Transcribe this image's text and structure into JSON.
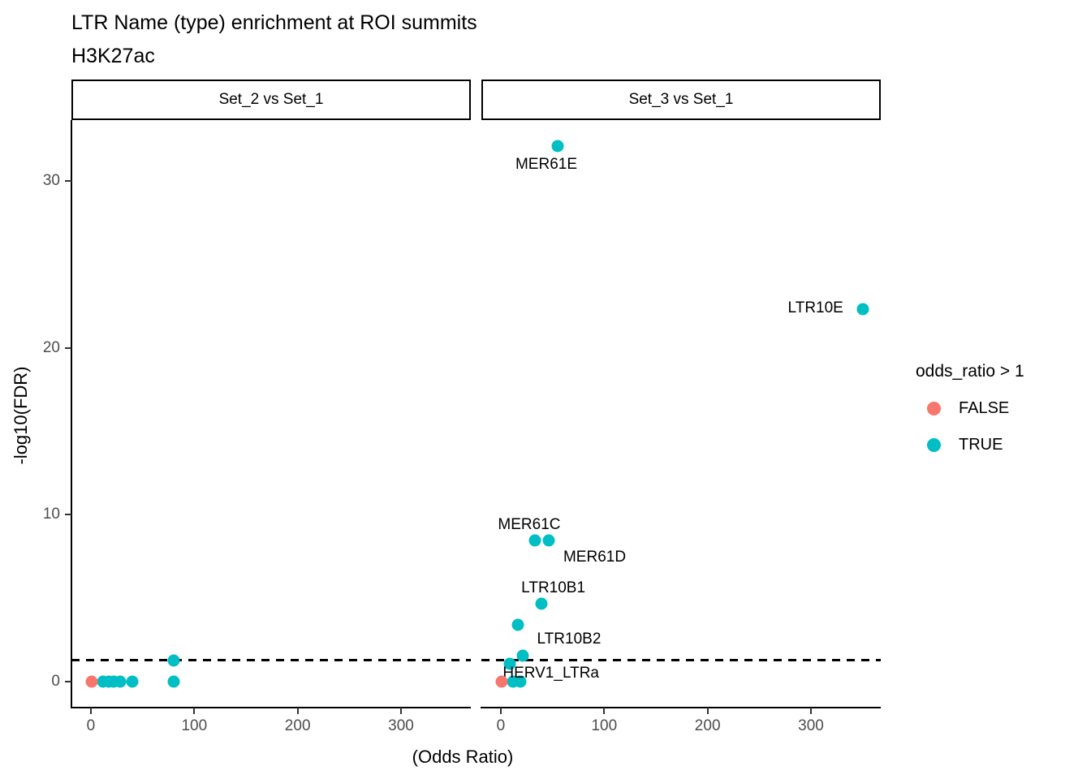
{
  "title": "LTR Name (type) enrichment at ROI summits",
  "subtitle": "H3K27ac",
  "chart_data": {
    "type": "scatter",
    "title": "LTR Name (type) enrichment at ROI summits",
    "subtitle": "H3K27ac",
    "xlabel": "(Odds Ratio)",
    "ylabel": "-log10(FDR)",
    "x_ticks": [
      0,
      100,
      200,
      300
    ],
    "y_ticks": [
      0,
      10,
      20,
      30
    ],
    "xlim": [
      -18.8,
      367.5
    ],
    "ylim": [
      -1.56,
      33.65
    ],
    "grid": false,
    "threshold_line": {
      "y": 1.3,
      "style": "dashed",
      "color": "#000000"
    },
    "legend": {
      "title": "odds_ratio > 1",
      "position": "right",
      "entries": [
        {
          "label": "FALSE",
          "color": "#F8766D"
        },
        {
          "label": "TRUE",
          "color": "#00BFC4"
        }
      ]
    },
    "facets": [
      {
        "label": "Set_2 vs Set_1",
        "points": [
          {
            "x": 12,
            "y": 0,
            "group": "TRUE"
          },
          {
            "x": 17,
            "y": 0,
            "group": "TRUE"
          },
          {
            "x": 22,
            "y": 0,
            "group": "TRUE"
          },
          {
            "x": 28,
            "y": 0,
            "group": "TRUE"
          },
          {
            "x": 40,
            "y": 0,
            "group": "TRUE"
          },
          {
            "x": 80,
            "y": 1.25,
            "group": "TRUE"
          },
          {
            "x": 80,
            "y": 0,
            "group": "TRUE"
          },
          {
            "x": 1,
            "y": 0,
            "group": "FALSE"
          }
        ]
      },
      {
        "label": "Set_3 vs Set_1",
        "points": [
          {
            "x": 12,
            "y": 0,
            "group": "TRUE"
          },
          {
            "x": 19,
            "y": 0,
            "group": "TRUE"
          },
          {
            "x": 9,
            "y": 1.05,
            "group": "TRUE"
          },
          {
            "x": 21,
            "y": 1.56,
            "group": "TRUE",
            "label": "HERV1_LTRa",
            "label_offset": [
              35,
              22
            ]
          },
          {
            "x": 16.5,
            "y": 3.4,
            "group": "TRUE",
            "label": "LTR10B2",
            "label_offset": [
              63,
              18
            ]
          },
          {
            "x": 39,
            "y": 4.67,
            "group": "TRUE",
            "label": "LTR10B1",
            "label_offset": [
              15,
              -19
            ]
          },
          {
            "x": 33,
            "y": 8.46,
            "group": "TRUE",
            "label": "MER61C",
            "label_offset": [
              -7,
              -19
            ]
          },
          {
            "x": 46,
            "y": 8.46,
            "group": "TRUE",
            "label": "MER61D",
            "label_offset": [
              57,
              21
            ]
          },
          {
            "x": 350,
            "y": 22.3,
            "group": "TRUE",
            "label": "LTR10E",
            "label_offset": [
              -58,
              -1
            ]
          },
          {
            "x": 55,
            "y": 32.1,
            "group": "TRUE",
            "label": "MER61E",
            "label_offset": [
              -14,
              23
            ]
          },
          {
            "x": 1,
            "y": 0,
            "group": "FALSE"
          }
        ]
      }
    ]
  }
}
